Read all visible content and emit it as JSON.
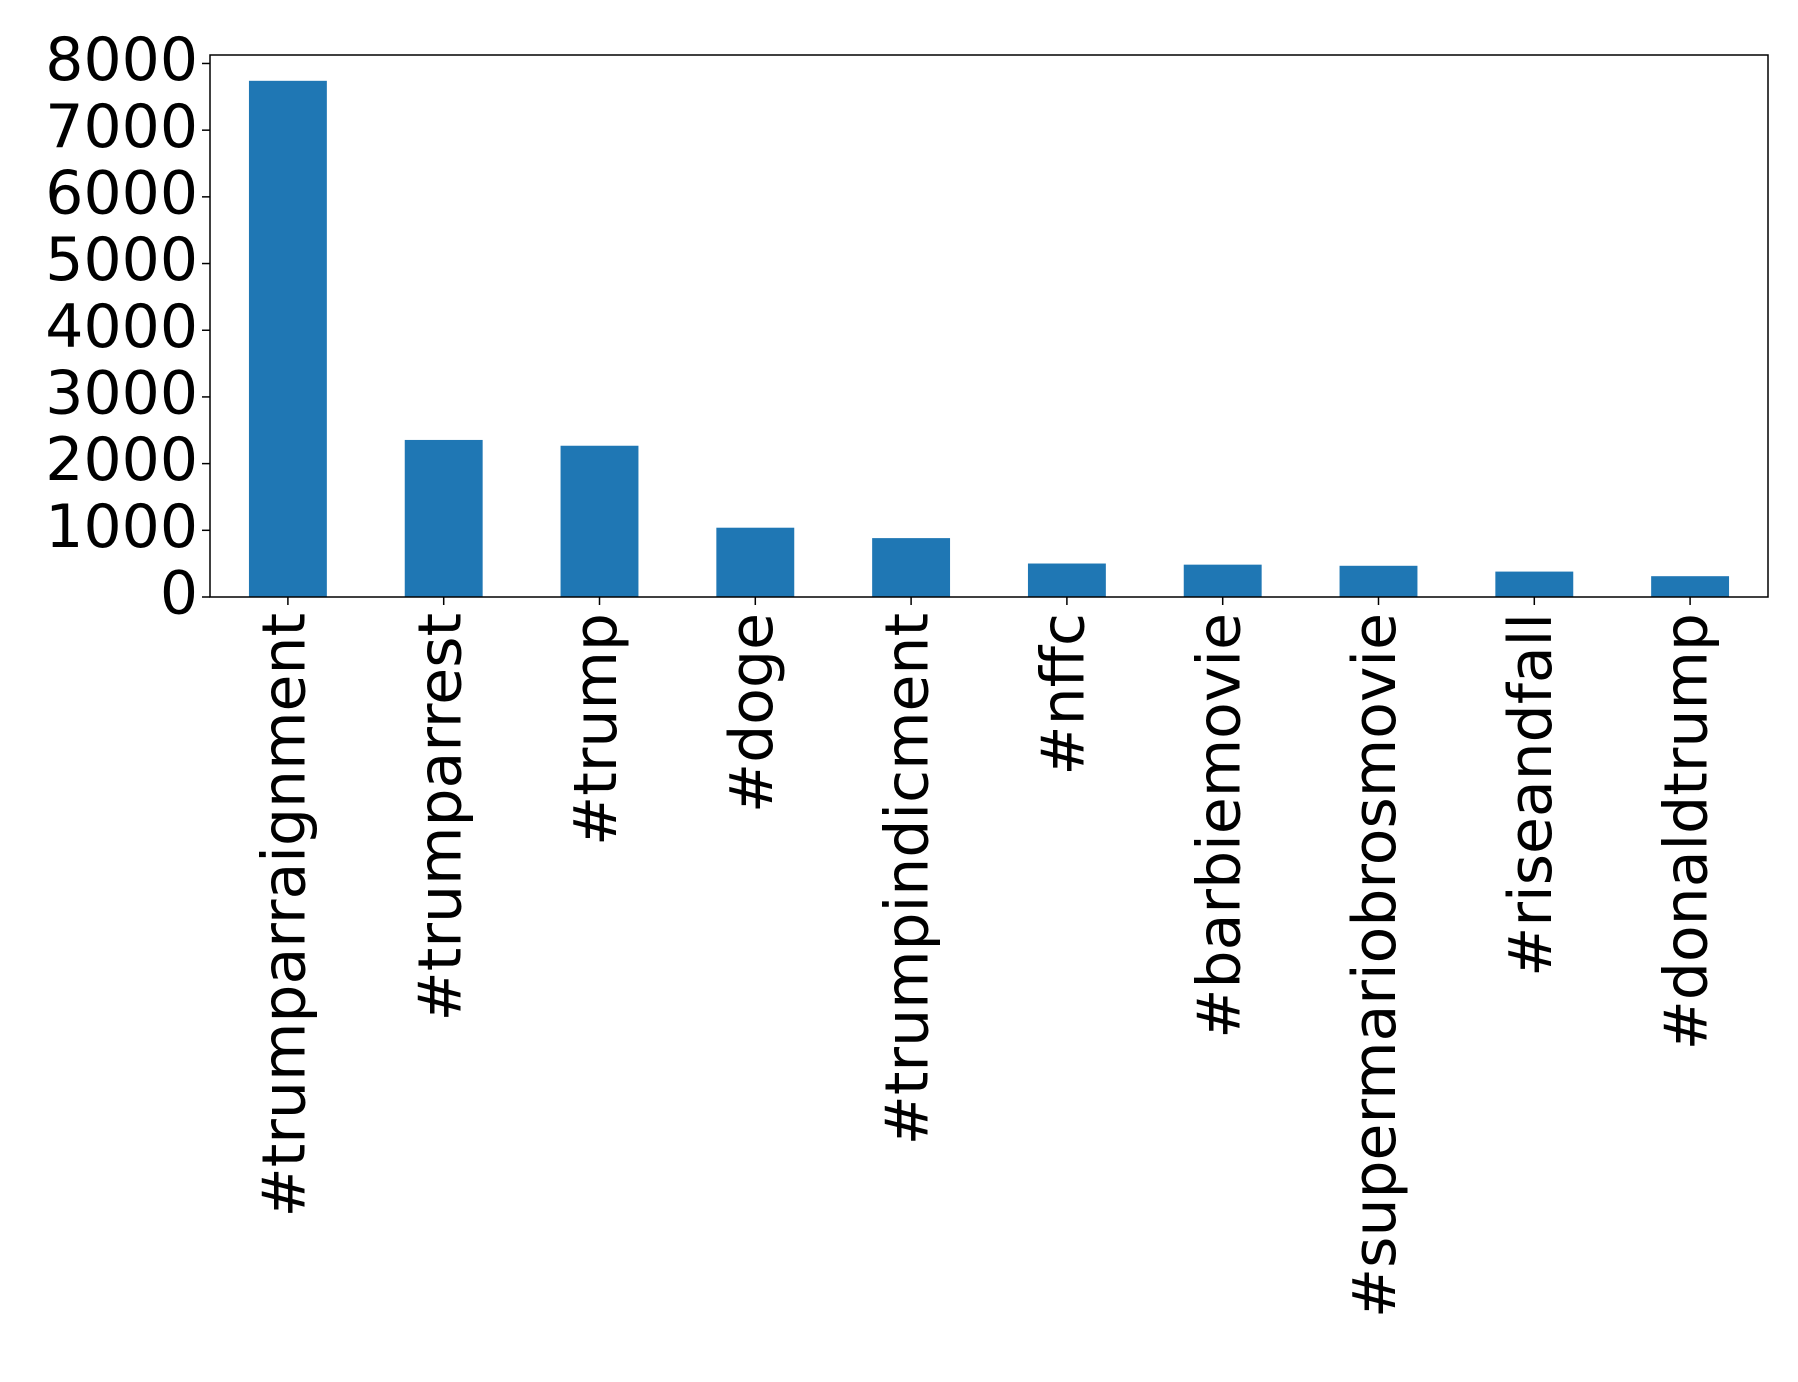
{
  "chart_data": {
    "type": "bar",
    "categories": [
      "#trumparraignment",
      "#trumparrest",
      "#trump",
      "#doge",
      "#trumpindicment",
      "#nffc",
      "#barbiemovie",
      "#supermariobrosmovie",
      "#riseandfall",
      "#donaldtrump"
    ],
    "values": [
      7740,
      2355,
      2268,
      1039,
      883,
      502,
      485,
      468,
      381,
      312
    ],
    "color": "#1f77b4",
    "ylim": [
      0,
      8127
    ],
    "yticks": [
      0,
      1000,
      2000,
      3000,
      4000,
      5000,
      6000,
      7000,
      8000
    ],
    "grid": false
  }
}
